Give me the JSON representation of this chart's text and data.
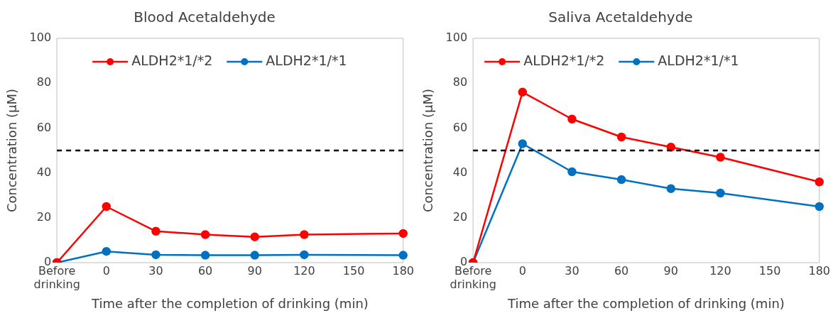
{
  "chart_data": [
    {
      "type": "line",
      "title": "Blood Acetaldehyde",
      "xlabel": "Time after the completion of drinking (min)",
      "ylabel": "Concentration (μM)",
      "categories": [
        "Before drinking",
        "0",
        "30",
        "60",
        "90",
        "120",
        "150",
        "180"
      ],
      "series": [
        {
          "name": "ALDH2*1/*2",
          "color": "#ff0000",
          "values": [
            0,
            25,
            14,
            12.5,
            11.5,
            12.5,
            null,
            13
          ]
        },
        {
          "name": "ALDH2*1/*1",
          "color": "#0070c0",
          "values": [
            0,
            5,
            3.5,
            3.3,
            3.3,
            3.5,
            null,
            3.3
          ]
        }
      ],
      "ylim": [
        0,
        100
      ],
      "yticks": [
        0,
        20,
        40,
        60,
        80,
        100
      ],
      "ref_lines": [
        {
          "axis": "y",
          "value": 50,
          "color": "#000000",
          "line_style": "dashed"
        }
      ],
      "grid": false,
      "legend": "top",
      "marker": "circle",
      "line_style": "solid"
    },
    {
      "type": "line",
      "title": "Saliva Acetaldehyde",
      "xlabel": "Time after the completion of drinking (min)",
      "ylabel": "Concentration (μM)",
      "categories": [
        "Before drinking",
        "0",
        "30",
        "60",
        "90",
        "120",
        "150",
        "180"
      ],
      "series": [
        {
          "name": "ALDH2*1/*2",
          "color": "#ff0000",
          "values": [
            0,
            76,
            64,
            56,
            51.5,
            47,
            null,
            36
          ]
        },
        {
          "name": "ALDH2*1/*1",
          "color": "#0070c0",
          "values": [
            0,
            53,
            40.5,
            37,
            33,
            31,
            null,
            25
          ]
        }
      ],
      "ylim": [
        0,
        100
      ],
      "yticks": [
        0,
        20,
        40,
        60,
        80,
        100
      ],
      "ref_lines": [
        {
          "axis": "y",
          "value": 50,
          "color": "#000000",
          "line_style": "dashed"
        }
      ],
      "grid": false,
      "legend": "top",
      "marker": "circle",
      "line_style": "solid"
    }
  ]
}
